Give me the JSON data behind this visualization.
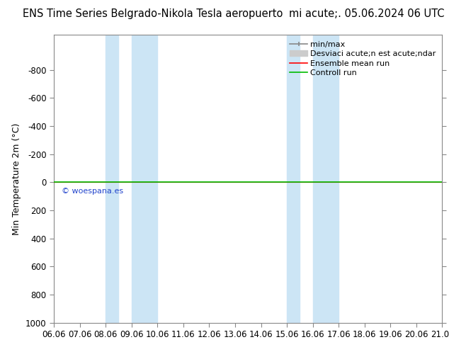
{
  "title_left": "ENS Time Series Belgrado-Nikola Tesla aeropuerto",
  "title_right": "mi acute;. 05.06.2024 06 UTC",
  "ylabel": "Min Temperature 2m (°C)",
  "ylim_bottom": 1000,
  "ylim_top": -1050,
  "yticks": [
    -800,
    -600,
    -400,
    -200,
    0,
    200,
    400,
    600,
    800,
    1000
  ],
  "x_start": 0,
  "x_end": 15,
  "xtick_labels": [
    "06.06",
    "07.06",
    "08.06",
    "09.06",
    "10.06",
    "11.06",
    "12.06",
    "13.06",
    "14.06",
    "15.06",
    "16.06",
    "17.06",
    "18.06",
    "19.06",
    "20.06",
    "21.06"
  ],
  "xtick_positions": [
    0,
    1,
    2,
    3,
    4,
    5,
    6,
    7,
    8,
    9,
    10,
    11,
    12,
    13,
    14,
    15
  ],
  "blue_bands": [
    [
      2.0,
      2.5
    ],
    [
      3.0,
      4.0
    ],
    [
      9.0,
      9.5
    ],
    [
      10.0,
      11.0
    ]
  ],
  "blue_band_color": "#cce5f5",
  "green_line_y": 0,
  "green_line_color": "#00bb00",
  "red_line_y": 0,
  "red_line_color": "#ff0000",
  "watermark": "© woespana.es",
  "watermark_color": "#2244cc",
  "bg_color": "#ffffff",
  "legend_minmax_color": "#888888",
  "legend_std_color": "#cccccc",
  "legend_ensemble_color": "#ff0000",
  "legend_control_color": "#00bb00",
  "spine_color": "#888888",
  "title_fontsize": 10.5,
  "axis_label_fontsize": 9,
  "tick_label_fontsize": 8.5
}
